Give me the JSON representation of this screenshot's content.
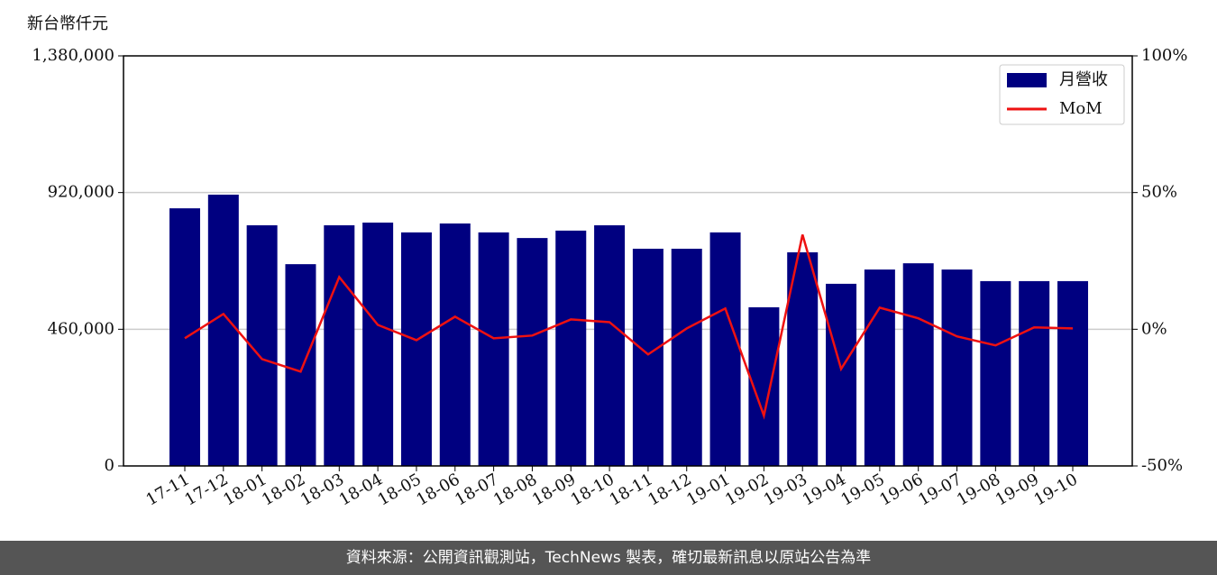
{
  "chart_data": {
    "type": "bar",
    "y_label": "新台幣仟元",
    "categories": [
      "17-11",
      "17-12",
      "18-01",
      "18-02",
      "18-03",
      "18-04",
      "18-05",
      "18-06",
      "18-07",
      "18-08",
      "18-09",
      "18-10",
      "18-11",
      "18-12",
      "19-01",
      "19-02",
      "19-03",
      "19-04",
      "19-05",
      "19-06",
      "19-07",
      "19-08",
      "19-09",
      "19-10"
    ],
    "series": [
      {
        "name": "月營收",
        "type": "bar",
        "color": "#000080",
        "values": [
          867000,
          913000,
          810000,
          679000,
          810000,
          819000,
          786000,
          816000,
          786000,
          767000,
          792000,
          810000,
          731000,
          731000,
          786000,
          534000,
          719000,
          613000,
          661000,
          682000,
          661000,
          622000,
          622000,
          622000
        ]
      },
      {
        "name": "MoM",
        "type": "line",
        "axis": "y2",
        "color": "#ee1111",
        "values": [
          -3.3,
          5.6,
          -10.9,
          -15.5,
          19.1,
          1.6,
          -4.0,
          4.6,
          -3.3,
          -2.3,
          3.6,
          2.6,
          -9.2,
          0.3,
          7.6,
          -31.6,
          34.6,
          -14.5,
          7.9,
          4.0,
          -2.6,
          -5.9,
          0.7,
          0.3
        ]
      }
    ],
    "ylim": [
      0,
      1380000
    ],
    "yticks": [
      0,
      {
        "value": 460000,
        "label": "460,000"
      },
      {
        "value": 920000,
        "label": "920,000"
      },
      {
        "value": 1380000,
        "label": "1,380,000"
      }
    ],
    "y2lim": [
      -50,
      100
    ],
    "y2ticks": [
      {
        "value": -50,
        "label": "-50%"
      },
      {
        "value": 0,
        "label": "0%"
      },
      {
        "value": 50,
        "label": "50%"
      },
      {
        "value": 100,
        "label": "100%"
      }
    ],
    "grid": true,
    "legend": "upper right"
  },
  "footer": {
    "text": "資料來源：公開資訊觀測站，TechNews 製表，確切最新訊息以原站公告為準"
  }
}
